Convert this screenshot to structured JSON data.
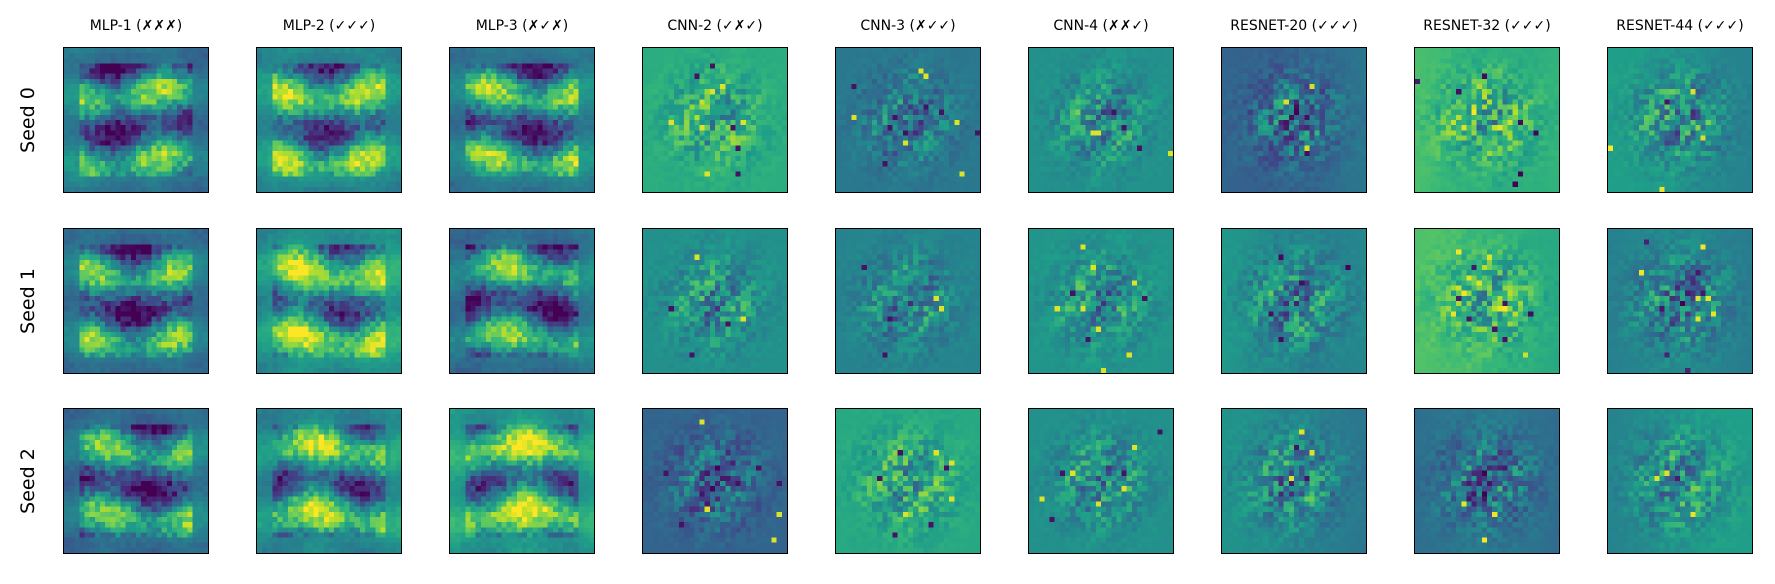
{
  "columns": [
    {
      "title": "MLP-1 (✗✗✗)"
    },
    {
      "title": "MLP-2 (✓✓✓)"
    },
    {
      "title": "MLP-3 (✗✓✗)"
    },
    {
      "title": "CNN-2 (✓✗✓)"
    },
    {
      "title": "CNN-3 (✗✓✓)"
    },
    {
      "title": "CNN-4 (✗✗✓)"
    },
    {
      "title": "RESNET-20 (✓✓✓)"
    },
    {
      "title": "RESNET-32 (✓✓✓)"
    },
    {
      "title": "RESNET-44 (✓✓✓)"
    }
  ],
  "rows": [
    {
      "label": "Seed 0"
    },
    {
      "label": "Seed 1"
    },
    {
      "label": "Seed 2"
    }
  ],
  "colormap": "viridis"
}
